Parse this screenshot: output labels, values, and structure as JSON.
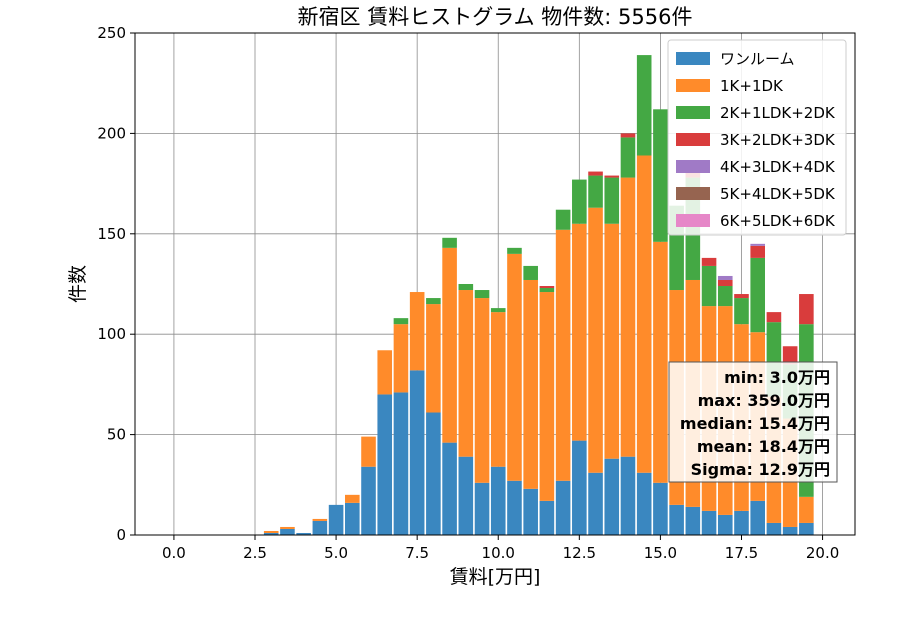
{
  "chart_data": {
    "type": "bar",
    "stacked": true,
    "title": "新宿区 賃料ヒストグラム 物件数: 5556件",
    "xlabel": "賃料[万円]",
    "ylabel": "件数",
    "xlim": [
      -1.2,
      21.0
    ],
    "ylim": [
      0,
      250
    ],
    "xticks": [
      0.0,
      2.5,
      5.0,
      7.5,
      10.0,
      12.5,
      15.0,
      17.5,
      20.0
    ],
    "xtick_labels": [
      "0.0",
      "2.5",
      "5.0",
      "7.5",
      "10.0",
      "12.5",
      "15.0",
      "17.5",
      "20.0"
    ],
    "yticks": [
      0,
      50,
      100,
      150,
      200,
      250
    ],
    "ytick_labels": [
      "0",
      "50",
      "100",
      "150",
      "200",
      "250"
    ],
    "grid": true,
    "legend_position": "top-right",
    "bin_width": 0.5,
    "x": [
      3.0,
      3.5,
      4.0,
      4.5,
      5.0,
      5.5,
      6.0,
      6.5,
      7.0,
      7.5,
      8.0,
      8.5,
      9.0,
      9.5,
      10.0,
      10.5,
      11.0,
      11.5,
      12.0,
      12.5,
      13.0,
      13.5,
      14.0,
      14.5,
      15.0,
      15.5,
      16.0,
      16.5,
      17.0,
      17.5,
      18.0,
      18.5,
      19.0,
      19.5
    ],
    "series": [
      {
        "name": "ワンルーム",
        "color": "#3a87c0",
        "values": [
          1,
          3,
          1,
          7,
          15,
          16,
          34,
          70,
          71,
          82,
          61,
          46,
          39,
          26,
          34,
          27,
          23,
          17,
          27,
          47,
          31,
          38,
          39,
          31,
          26,
          15,
          14,
          12,
          10,
          12,
          17,
          6,
          4,
          6
        ]
      },
      {
        "name": "1K+1DK",
        "color": "#ff8b2a",
        "values": [
          1,
          1,
          0,
          1,
          0,
          4,
          15,
          22,
          34,
          39,
          54,
          97,
          83,
          92,
          77,
          113,
          104,
          104,
          125,
          108,
          132,
          117,
          139,
          158,
          120,
          107,
          113,
          102,
          104,
          93,
          84,
          63,
          54,
          13
        ]
      },
      {
        "name": "2K+1LDK+2DK",
        "color": "#44a844",
        "values": [
          0,
          0,
          0,
          0,
          0,
          0,
          0,
          0,
          3,
          0,
          3,
          5,
          3,
          4,
          2,
          3,
          7,
          2,
          10,
          22,
          16,
          23,
          20,
          50,
          66,
          42,
          51,
          20,
          10,
          13,
          37,
          37,
          27,
          86
        ]
      },
      {
        "name": "3K+2LDK+3DK",
        "color": "#d93c3c",
        "values": [
          0,
          0,
          0,
          0,
          0,
          0,
          0,
          0,
          0,
          0,
          0,
          0,
          0,
          0,
          0,
          0,
          0,
          1,
          0,
          0,
          2,
          1,
          2,
          0,
          0,
          0,
          3,
          4,
          3,
          2,
          6,
          5,
          9,
          15
        ]
      },
      {
        "name": "4K+3LDK+4DK",
        "color": "#a07ac6",
        "values": [
          0,
          0,
          0,
          0,
          0,
          0,
          0,
          0,
          0,
          0,
          0,
          0,
          0,
          0,
          0,
          0,
          0,
          0,
          0,
          0,
          0,
          0,
          0,
          0,
          0,
          0,
          0,
          0,
          2,
          0,
          1,
          0,
          0,
          0
        ]
      },
      {
        "name": "5K+4LDK+5DK",
        "color": "#966450",
        "values": [
          0,
          0,
          0,
          0,
          0,
          0,
          0,
          0,
          0,
          0,
          0,
          0,
          0,
          0,
          0,
          0,
          0,
          0,
          0,
          0,
          0,
          0,
          0,
          0,
          0,
          0,
          0,
          0,
          0,
          0,
          0,
          0,
          0,
          0
        ]
      },
      {
        "name": "6K+5LDK+6DK",
        "color": "#e687c8",
        "values": [
          0,
          0,
          0,
          0,
          0,
          0,
          0,
          0,
          0,
          0,
          0,
          0,
          0,
          0,
          0,
          0,
          0,
          0,
          0,
          0,
          0,
          0,
          0,
          0,
          0,
          0,
          0,
          0,
          0,
          0,
          0,
          0,
          0,
          0
        ]
      }
    ],
    "stats_box": [
      "min: 3.0万円",
      "max: 359.0万円",
      "median: 15.4万円",
      "mean: 18.4万円",
      "Sigma: 12.9万円"
    ]
  }
}
